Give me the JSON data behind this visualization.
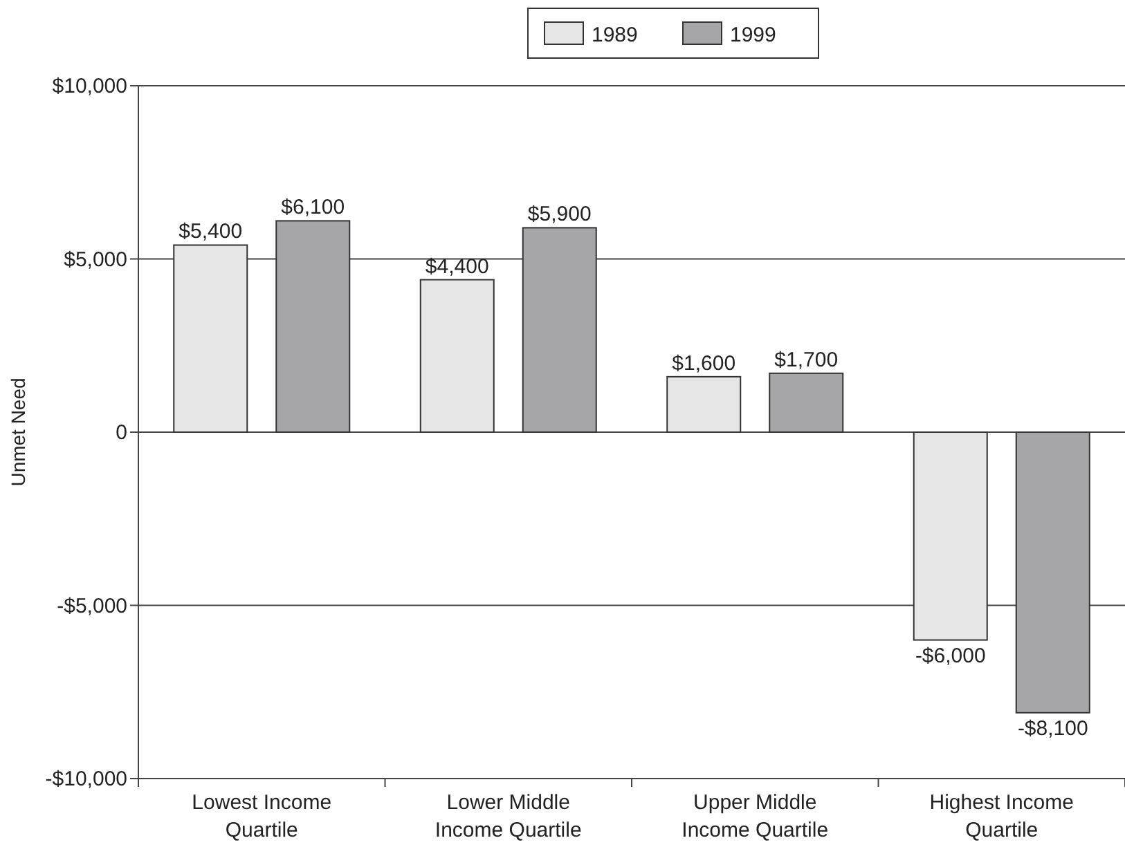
{
  "chart_data": {
    "type": "bar",
    "ylabel": "Unmet Need",
    "categories": [
      "Lowest Income Quartile",
      "Lower Middle Income Quartile",
      "Upper Middle Income Quartile",
      "Highest Income Quartile"
    ],
    "series": [
      {
        "name": "1989",
        "color": "#e6e6e6",
        "values": [
          5400,
          4400,
          1600,
          -6000
        ],
        "value_labels": [
          "$5,400",
          "$4,400",
          "$1,600",
          "-$6,000"
        ]
      },
      {
        "name": "1999",
        "color": "#a6a6a8",
        "values": [
          6100,
          5900,
          1700,
          -8100
        ],
        "value_labels": [
          "$6,100",
          "$5,900",
          "$1,700",
          "-$8,100"
        ]
      }
    ],
    "ylim": [
      -10000,
      10000
    ],
    "yticks": [
      {
        "value": -10000,
        "label": "-$10,000"
      },
      {
        "value": -5000,
        "label": "-$5,000"
      },
      0,
      {
        "value": 5000,
        "label": "$5,000"
      },
      {
        "value": 10000,
        "label": "$10,000"
      }
    ],
    "grid": "y",
    "legend": "top"
  }
}
